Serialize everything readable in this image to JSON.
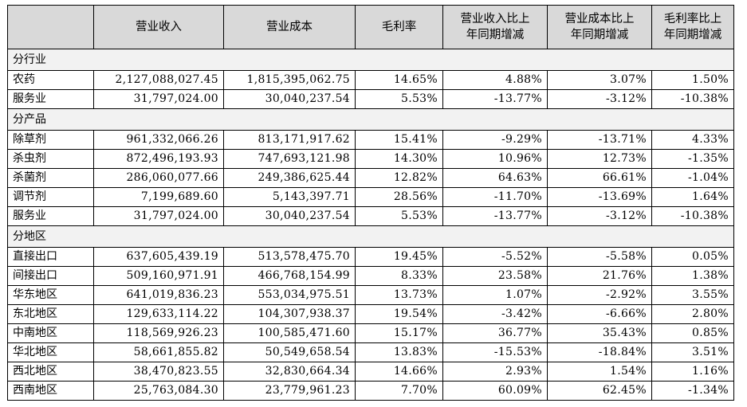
{
  "header": {
    "col_blank": "",
    "col_revenue": "营业收入",
    "col_cost": "营业成本",
    "col_margin": "毛利率",
    "col_revenue_yoy_line1": "营业收入比上",
    "col_revenue_yoy_line2": "年同期增减",
    "col_cost_yoy_line1": "营业成本比上",
    "col_cost_yoy_line2": "年同期增减",
    "col_margin_yoy_line1": "毛利率比上",
    "col_margin_yoy_line2": "年同期增减"
  },
  "sections": [
    {
      "title": "分行业",
      "rows": [
        [
          "农药",
          "2,127,088,027.45",
          "1,815,395,062.75",
          "14.65%",
          "4.88%",
          "3.07%",
          "1.50%"
        ],
        [
          "服务业",
          "31,797,024.00",
          "30,040,237.54",
          "5.53%",
          "-13.77%",
          "-3.12%",
          "-10.38%"
        ]
      ]
    },
    {
      "title": "分产品",
      "rows": [
        [
          "除草剂",
          "961,332,066.26",
          "813,171,917.62",
          "15.41%",
          "-9.29%",
          "-13.71%",
          "4.33%"
        ],
        [
          "杀虫剂",
          "872,496,193.93",
          "747,693,121.98",
          "14.30%",
          "10.96%",
          "12.73%",
          "-1.35%"
        ],
        [
          "杀菌剂",
          "286,060,077.66",
          "249,386,625.44",
          "12.82%",
          "64.63%",
          "66.61%",
          "-1.04%"
        ],
        [
          "调节剂",
          "7,199,689.60",
          "5,143,397.71",
          "28.56%",
          "-11.70%",
          "-13.69%",
          "1.64%"
        ],
        [
          "服务业",
          "31,797,024.00",
          "30,040,237.54",
          "5.53%",
          "-13.77%",
          "-3.12%",
          "-10.38%"
        ]
      ]
    },
    {
      "title": "分地区",
      "rows": [
        [
          "直接出口",
          "637,605,439.19",
          "513,578,475.70",
          "19.45%",
          "-5.52%",
          "-5.58%",
          "0.05%"
        ],
        [
          "间接出口",
          "509,160,971.91",
          "466,768,154.99",
          "8.33%",
          "23.58%",
          "21.76%",
          "1.38%"
        ],
        [
          "华东地区",
          "641,019,836.23",
          "553,034,975.51",
          "13.73%",
          "1.07%",
          "-2.92%",
          "3.55%"
        ],
        [
          "东北地区",
          "129,633,114.22",
          "104,307,938.37",
          "19.54%",
          "-3.42%",
          "-6.66%",
          "2.80%"
        ],
        [
          "中南地区",
          "118,569,926.23",
          "100,585,471.60",
          "15.17%",
          "36.77%",
          "35.43%",
          "0.85%"
        ],
        [
          "华北地区",
          "58,661,855.82",
          "50,549,658.54",
          "13.83%",
          "-15.53%",
          "-18.84%",
          "3.51%"
        ],
        [
          "西北地区",
          "38,470,823.55",
          "32,830,664.34",
          "14.66%",
          "2.93%",
          "1.54%",
          "1.16%"
        ],
        [
          "西南地区",
          "25,763,084.30",
          "23,779,961.23",
          "7.70%",
          "60.09%",
          "62.45%",
          "-1.34%"
        ]
      ]
    }
  ]
}
